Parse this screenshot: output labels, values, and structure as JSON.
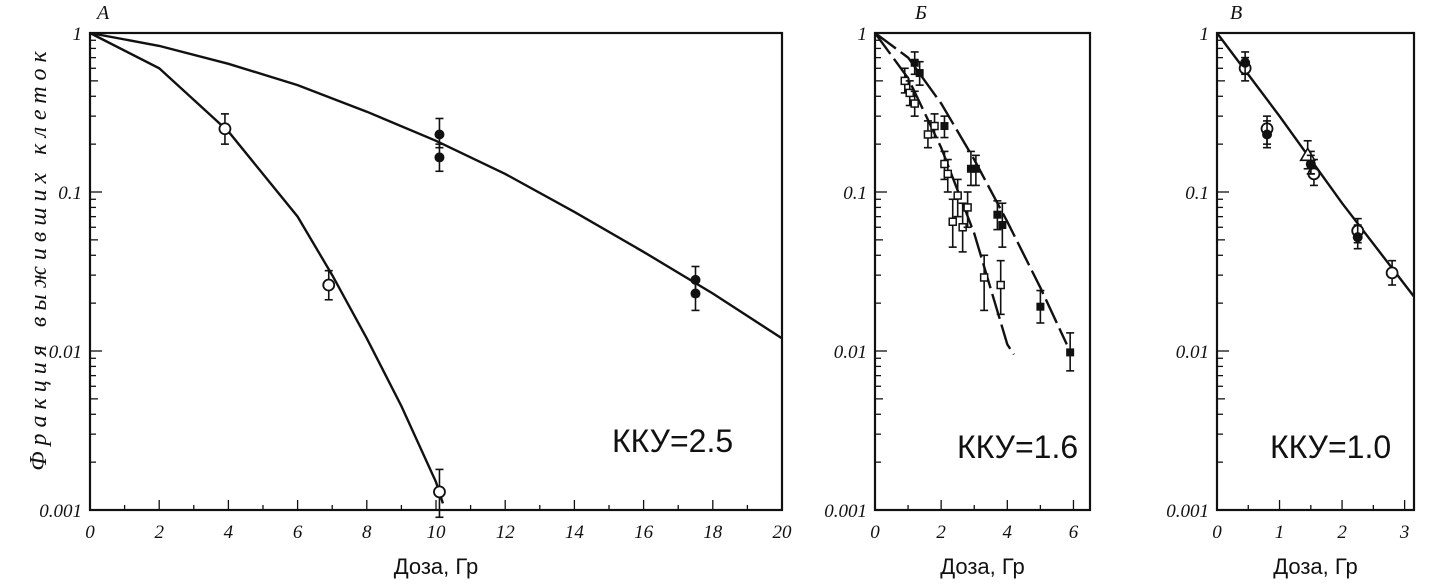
{
  "ylabel": "Фракция   выживших   клеток",
  "chart_data": [
    {
      "type": "scatter",
      "panel": "A",
      "xlabel": "Доза, Гр",
      "xlim": [
        0,
        20
      ],
      "ylim": [
        0.001,
        1
      ],
      "yscale": "log",
      "xticks": [
        0,
        2,
        4,
        6,
        8,
        10,
        12,
        14,
        16,
        18,
        20
      ],
      "yticks": [
        1,
        0.1,
        0.01,
        0.001
      ],
      "ytick_labels": [
        "1",
        "0.1",
        "0.01",
        "0.001"
      ],
      "annotation": "ККУ=2.5",
      "series": [
        {
          "marker": "open-circle",
          "points": [
            {
              "x": 3.9,
              "y": 0.25,
              "err_low": 0.2,
              "err_high": 0.31
            },
            {
              "x": 6.9,
              "y": 0.026,
              "err_low": 0.021,
              "err_high": 0.032
            },
            {
              "x": 10.1,
              "y": 0.0013,
              "err_low": 0.0009,
              "err_high": 0.0018
            }
          ],
          "fit": [
            [
              0,
              1
            ],
            [
              2,
              0.6
            ],
            [
              4,
              0.24
            ],
            [
              6,
              0.07
            ],
            [
              7,
              0.03
            ],
            [
              8,
              0.012
            ],
            [
              9,
              0.0045
            ],
            [
              10,
              0.0015
            ],
            [
              10.2,
              0.0011
            ]
          ]
        },
        {
          "marker": "filled-circle",
          "points": [
            {
              "x": 10.1,
              "y": 0.23,
              "err_low": 0.19,
              "err_high": 0.29
            },
            {
              "x": 10.1,
              "y": 0.165,
              "err_low": 0.135,
              "err_high": 0.2
            },
            {
              "x": 17.5,
              "y": 0.028,
              "err_low": 0.022,
              "err_high": 0.034
            },
            {
              "x": 17.5,
              "y": 0.023,
              "err_low": 0.018,
              "err_high": 0.028
            }
          ],
          "fit": [
            [
              0,
              1
            ],
            [
              2,
              0.83
            ],
            [
              4,
              0.64
            ],
            [
              6,
              0.47
            ],
            [
              8,
              0.32
            ],
            [
              10,
              0.21
            ],
            [
              12,
              0.13
            ],
            [
              14,
              0.075
            ],
            [
              16,
              0.042
            ],
            [
              18,
              0.023
            ],
            [
              20,
              0.012
            ]
          ]
        }
      ]
    },
    {
      "type": "scatter",
      "panel": "Б",
      "xlabel": "Доза, Гр",
      "xlim": [
        0,
        6.5
      ],
      "ylim": [
        0.001,
        1
      ],
      "yscale": "log",
      "xticks": [
        0,
        2,
        4,
        6
      ],
      "yticks": [
        1,
        0.1,
        0.01,
        0.001
      ],
      "ytick_labels": [
        "1",
        "0.1",
        "0.01",
        "0.001"
      ],
      "annotation": "ККУ=1.6",
      "series": [
        {
          "marker": "open-square",
          "points": [
            {
              "x": 0.9,
              "y": 0.5,
              "err_low": 0.42,
              "err_high": 0.6
            },
            {
              "x": 1.05,
              "y": 0.42,
              "err_low": 0.35,
              "err_high": 0.5
            },
            {
              "x": 1.2,
              "y": 0.36,
              "err_low": 0.3,
              "err_high": 0.43
            },
            {
              "x": 1.6,
              "y": 0.23,
              "err_low": 0.19,
              "err_high": 0.28
            },
            {
              "x": 1.8,
              "y": 0.26,
              "err_low": 0.22,
              "err_high": 0.31
            },
            {
              "x": 2.1,
              "y": 0.15,
              "err_low": 0.12,
              "err_high": 0.18
            },
            {
              "x": 2.2,
              "y": 0.13,
              "err_low": 0.1,
              "err_high": 0.16
            },
            {
              "x": 2.35,
              "y": 0.065,
              "err_low": 0.045,
              "err_high": 0.09
            },
            {
              "x": 2.5,
              "y": 0.095,
              "err_low": 0.07,
              "err_high": 0.12
            },
            {
              "x": 2.65,
              "y": 0.06,
              "err_low": 0.042,
              "err_high": 0.085
            },
            {
              "x": 2.8,
              "y": 0.08,
              "err_low": 0.06,
              "err_high": 0.1
            },
            {
              "x": 3.3,
              "y": 0.029,
              "err_low": 0.018,
              "err_high": 0.04
            },
            {
              "x": 3.8,
              "y": 0.026,
              "err_low": 0.017,
              "err_high": 0.037
            }
          ],
          "fit": [
            [
              0,
              1
            ],
            [
              1,
              0.52
            ],
            [
              2,
              0.19
            ],
            [
              3,
              0.055
            ],
            [
              4,
              0.011
            ],
            [
              4.2,
              0.0095
            ]
          ]
        },
        {
          "marker": "filled-square",
          "points": [
            {
              "x": 1.2,
              "y": 0.65,
              "err_low": 0.55,
              "err_high": 0.76
            },
            {
              "x": 1.35,
              "y": 0.56,
              "err_low": 0.47,
              "err_high": 0.66
            },
            {
              "x": 2.1,
              "y": 0.26,
              "err_low": 0.22,
              "err_high": 0.3
            },
            {
              "x": 2.9,
              "y": 0.14,
              "err_low": 0.11,
              "err_high": 0.18
            },
            {
              "x": 3.05,
              "y": 0.14,
              "err_low": 0.11,
              "err_high": 0.17
            },
            {
              "x": 3.7,
              "y": 0.072,
              "err_low": 0.058,
              "err_high": 0.088
            },
            {
              "x": 3.85,
              "y": 0.062,
              "err_low": 0.045,
              "err_high": 0.085
            },
            {
              "x": 5.0,
              "y": 0.019,
              "err_low": 0.015,
              "err_high": 0.024
            },
            {
              "x": 5.9,
              "y": 0.0098,
              "err_low": 0.0075,
              "err_high": 0.013
            }
          ],
          "fit": [
            [
              0,
              1
            ],
            [
              1,
              0.7
            ],
            [
              2,
              0.36
            ],
            [
              3,
              0.16
            ],
            [
              4,
              0.065
            ],
            [
              5,
              0.025
            ],
            [
              5.8,
              0.011
            ]
          ]
        }
      ]
    },
    {
      "type": "scatter",
      "panel": "В",
      "xlabel": "Доза, Гр",
      "xlim": [
        0,
        3.15
      ],
      "ylim": [
        0.001,
        1
      ],
      "yscale": "log",
      "xticks": [
        0,
        1,
        2,
        3
      ],
      "yticks": [
        1,
        0.1,
        0.01,
        0.001
      ],
      "ytick_labels": [
        "1",
        "0.1",
        "0.01",
        "0.001"
      ],
      "annotation": "ККУ=1.0",
      "series": [
        {
          "marker": "open-circle",
          "points": [
            {
              "x": 0.45,
              "y": 0.6,
              "err_low": 0.5,
              "err_high": 0.7
            },
            {
              "x": 0.8,
              "y": 0.25,
              "err_low": 0.2,
              "err_high": 0.3
            },
            {
              "x": 1.55,
              "y": 0.13,
              "err_low": 0.11,
              "err_high": 0.16
            },
            {
              "x": 2.25,
              "y": 0.057,
              "err_low": 0.048,
              "err_high": 0.068
            },
            {
              "x": 2.8,
              "y": 0.031,
              "err_low": 0.026,
              "err_high": 0.037
            }
          ]
        },
        {
          "marker": "filled-circle",
          "points": [
            {
              "x": 0.45,
              "y": 0.65,
              "err_low": 0.55,
              "err_high": 0.76
            },
            {
              "x": 0.8,
              "y": 0.23,
              "err_low": 0.19,
              "err_high": 0.28
            },
            {
              "x": 1.5,
              "y": 0.15,
              "err_low": 0.13,
              "err_high": 0.18
            },
            {
              "x": 2.25,
              "y": 0.052,
              "err_low": 0.044,
              "err_high": 0.062
            }
          ]
        },
        {
          "marker": "open-triangle",
          "points": [
            {
              "x": 1.45,
              "y": 0.17,
              "err_low": 0.14,
              "err_high": 0.21
            }
          ]
        },
        {
          "marker": "filled-square",
          "points": [
            {
              "x": 1.5,
              "y": 0.15,
              "err_low": 0.13,
              "err_high": 0.17
            }
          ]
        }
      ],
      "fit": [
        [
          0,
          1
        ],
        [
          1,
          0.3
        ],
        [
          2,
          0.085
        ],
        [
          3.15,
          0.022
        ]
      ]
    }
  ]
}
